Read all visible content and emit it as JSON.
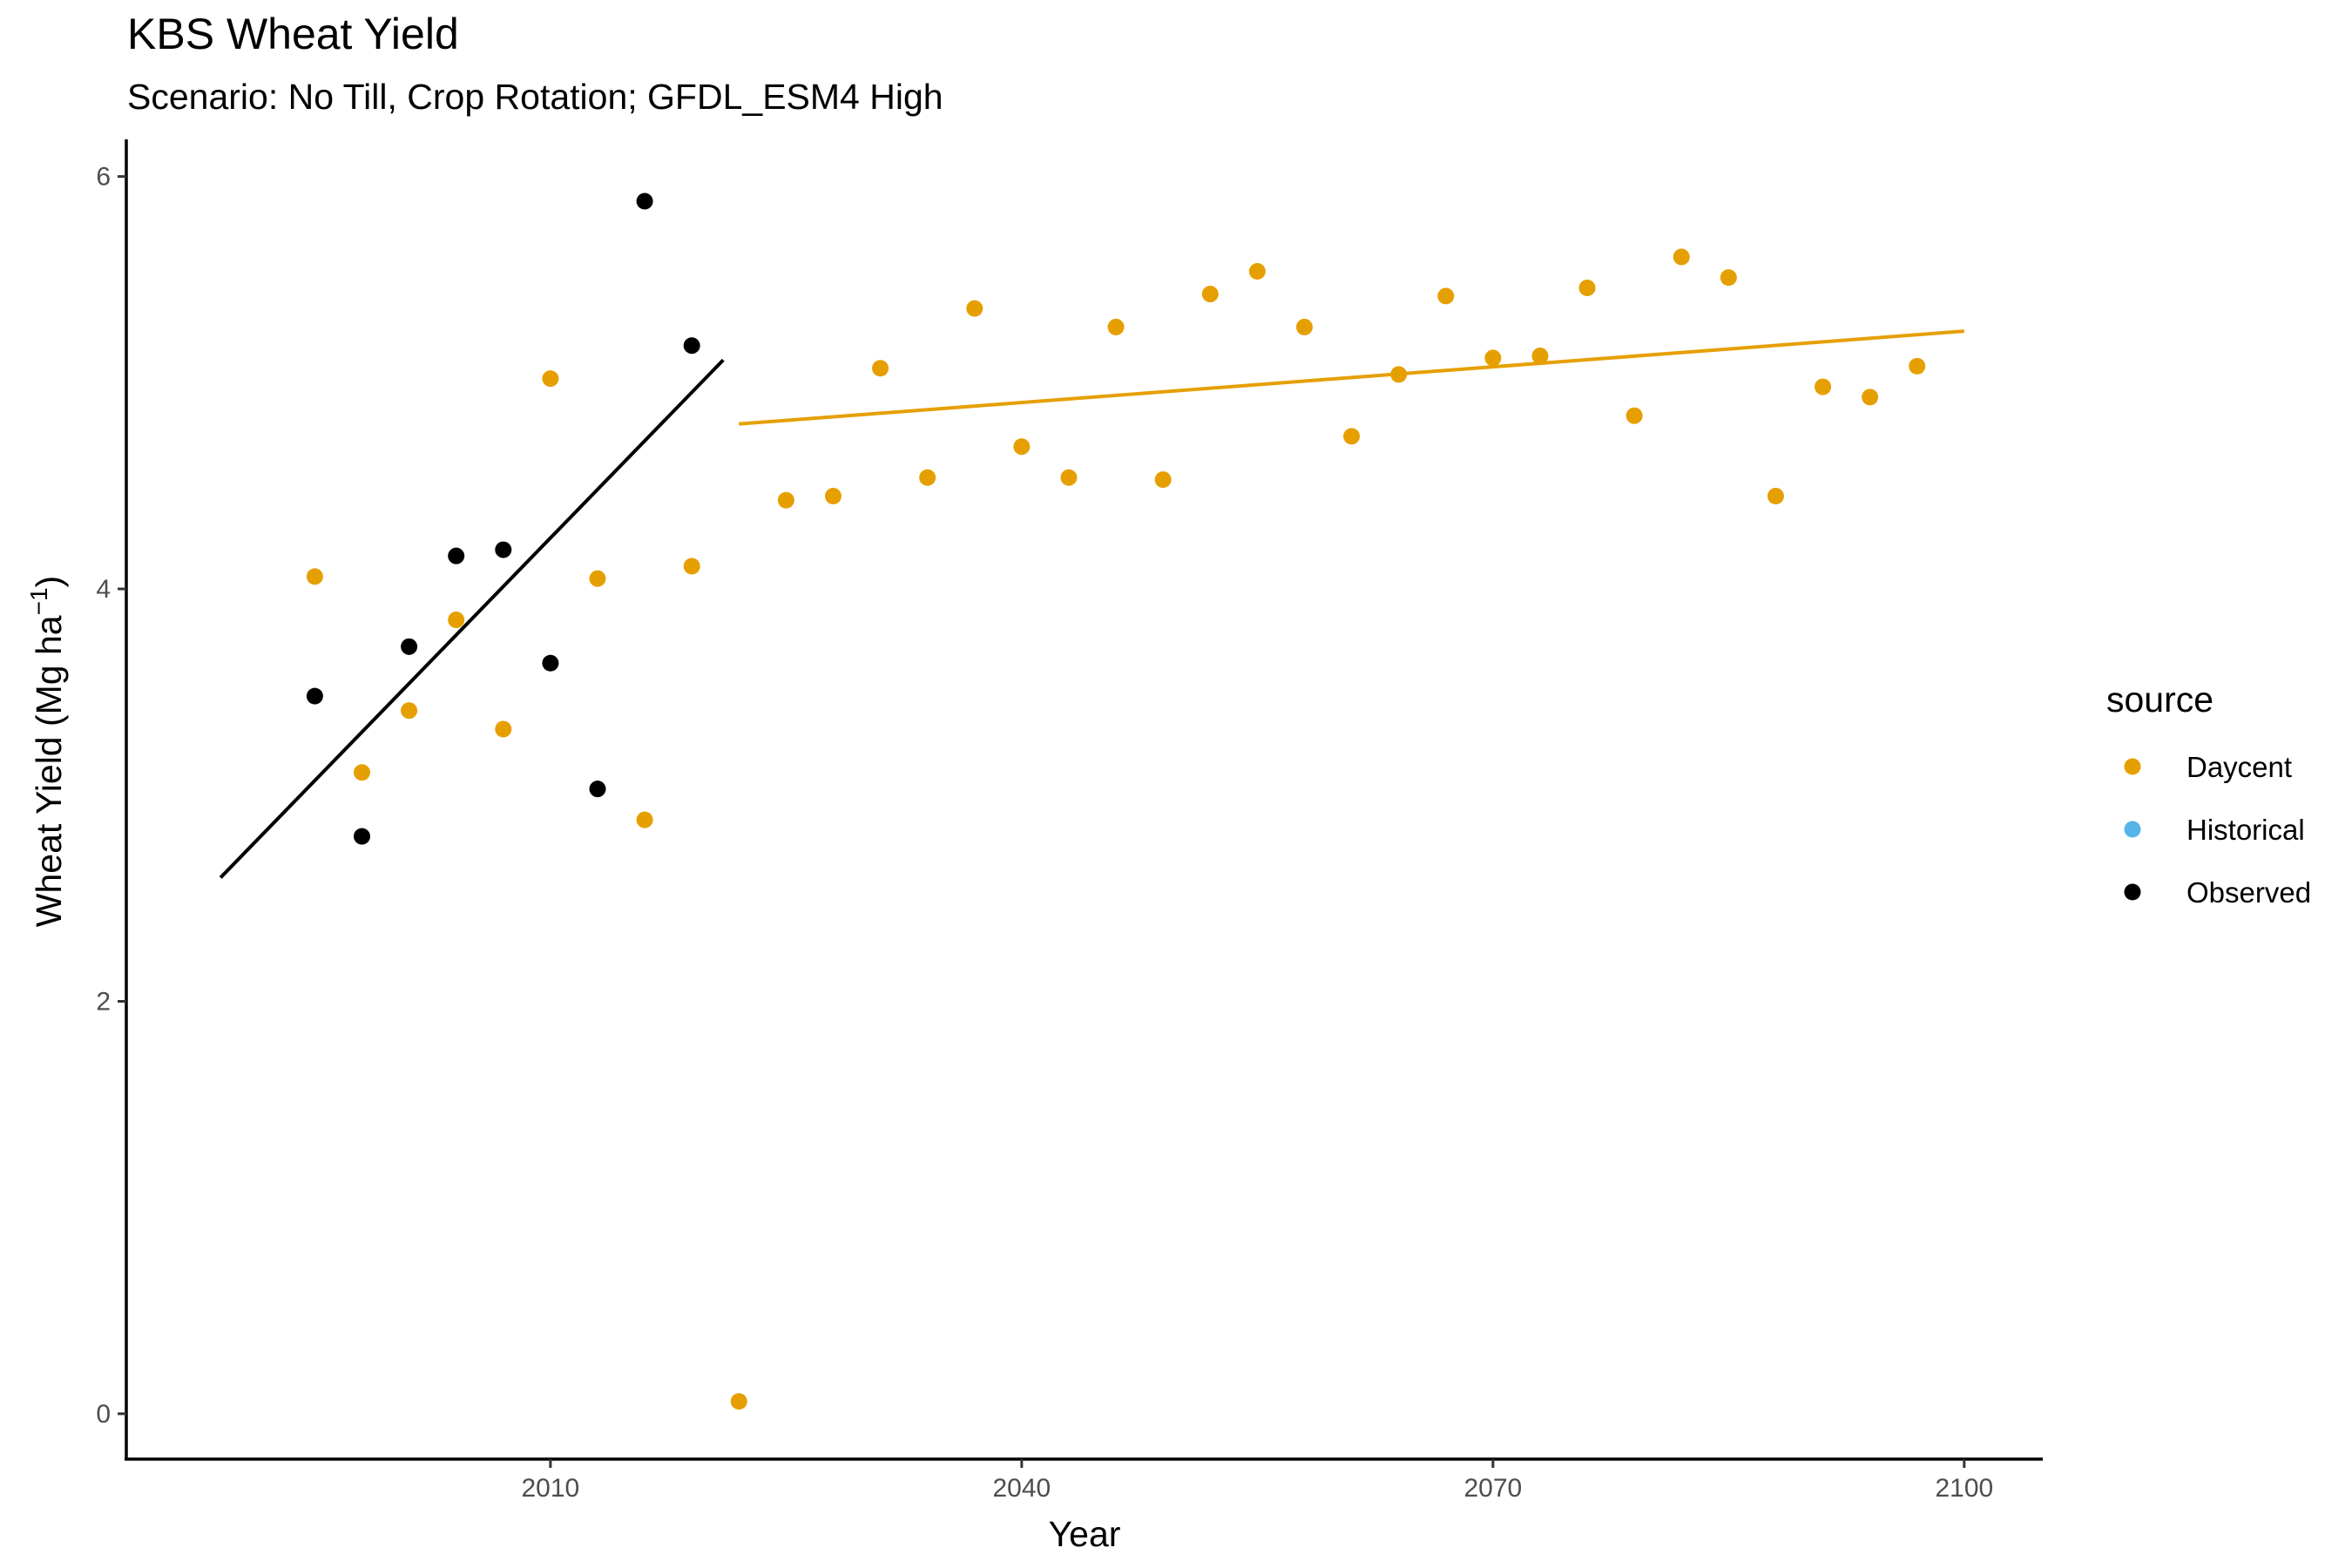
{
  "title": "KBS Wheat Yield",
  "subtitle": "Scenario: No Till, Crop Rotation; GFDL_ESM4 High",
  "chart_data": {
    "type": "scatter",
    "title": "KBS Wheat Yield",
    "subtitle": "Scenario: No Till, Crop Rotation; GFDL_ESM4 High",
    "xlabel": "Year",
    "ylabel": "Wheat Yield (Mg ha",
    "ylabel_superscript": "−1",
    "ylabel_suffix": ")",
    "xlim": [
      1983,
      2105
    ],
    "ylim": [
      -0.22,
      6.18
    ],
    "xticks": [
      2010,
      2040,
      2070,
      2100
    ],
    "yticks": [
      0,
      2,
      4,
      6
    ],
    "grid": false,
    "legend": {
      "title": "source",
      "position": "right",
      "entries": [
        {
          "label": "Daycent",
          "color": "#E69F00"
        },
        {
          "label": "Historical",
          "color": "#56B4E9"
        },
        {
          "label": "Observed",
          "color": "#000000"
        }
      ]
    },
    "series": [
      {
        "name": "Daycent",
        "color": "#E69F00",
        "points": [
          [
            1995,
            4.06
          ],
          [
            1998,
            3.11
          ],
          [
            2001,
            3.41
          ],
          [
            2004,
            3.85
          ],
          [
            2007,
            3.32
          ],
          [
            2010,
            5.02
          ],
          [
            2013,
            4.05
          ],
          [
            2016,
            2.88
          ],
          [
            2019,
            4.11
          ],
          [
            2022,
            0.06
          ],
          [
            2025,
            4.43
          ],
          [
            2028,
            4.45
          ],
          [
            2031,
            5.07
          ],
          [
            2034,
            4.54
          ],
          [
            2037,
            5.36
          ],
          [
            2040,
            4.69
          ],
          [
            2043,
            4.54
          ],
          [
            2046,
            5.27
          ],
          [
            2049,
            4.53
          ],
          [
            2052,
            5.43
          ],
          [
            2055,
            5.54
          ],
          [
            2058,
            5.27
          ],
          [
            2061,
            4.74
          ],
          [
            2064,
            5.04
          ],
          [
            2067,
            5.42
          ],
          [
            2070,
            5.12
          ],
          [
            2073,
            5.13
          ],
          [
            2076,
            5.46
          ],
          [
            2079,
            4.84
          ],
          [
            2082,
            5.61
          ],
          [
            2085,
            5.51
          ],
          [
            2088,
            4.45
          ],
          [
            2091,
            4.98
          ],
          [
            2094,
            4.93
          ],
          [
            2097,
            5.08
          ]
        ]
      },
      {
        "name": "Observed",
        "color": "#000000",
        "points": [
          [
            1995,
            3.48
          ],
          [
            1998,
            2.8
          ],
          [
            2001,
            3.72
          ],
          [
            2004,
            4.16
          ],
          [
            2007,
            4.19
          ],
          [
            2010,
            3.64
          ],
          [
            2013,
            3.03
          ],
          [
            2016,
            5.88
          ],
          [
            2019,
            5.18
          ]
        ]
      }
    ],
    "trend_lines": [
      {
        "series": "Observed",
        "color": "#000000",
        "x": [
          1989,
          2021
        ],
        "y": [
          2.6,
          5.11
        ]
      },
      {
        "series": "Daycent",
        "color": "#E69F00",
        "x": [
          2022,
          2100
        ],
        "y": [
          4.8,
          5.25
        ]
      }
    ]
  }
}
